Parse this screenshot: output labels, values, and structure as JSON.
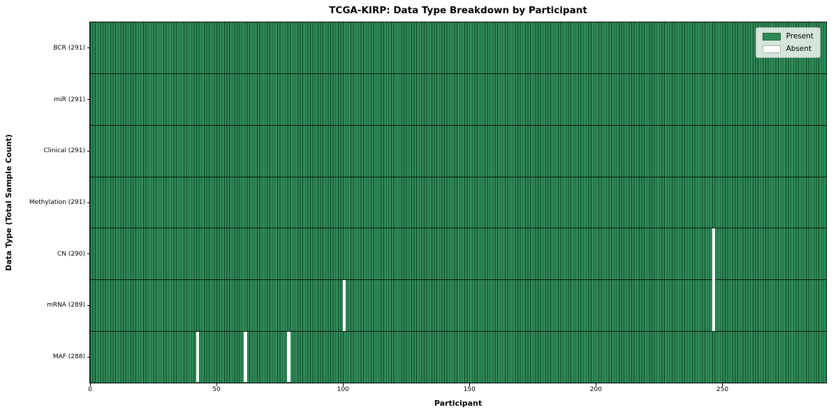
{
  "chart_data": {
    "type": "heatmap",
    "title": "TCGA-KIRP: Data Type Breakdown by Participant",
    "xlabel": "Participant",
    "ylabel": "Data Type (Total Sample Count)",
    "x_ticks": [
      0,
      50,
      100,
      150,
      200,
      250
    ],
    "xlim": [
      0,
      291
    ],
    "n_participants": 291,
    "grid": false,
    "legend": {
      "position": "upper right",
      "entries": [
        {
          "label": "Present",
          "color": "#2e8b57"
        },
        {
          "label": "Absent",
          "color": "#ffffff"
        }
      ]
    },
    "rows": [
      {
        "label": "BCR (291)",
        "data_type": "BCR",
        "count": 291,
        "absent_participants": []
      },
      {
        "label": "miR (291)",
        "data_type": "miR",
        "count": 291,
        "absent_participants": []
      },
      {
        "label": "Clinical (291)",
        "data_type": "Clinical",
        "count": 291,
        "absent_participants": []
      },
      {
        "label": "Methylation (291)",
        "data_type": "Methylation",
        "count": 291,
        "absent_participants": []
      },
      {
        "label": "CN (290)",
        "data_type": "CN",
        "count": 290,
        "absent_participants": [
          246
        ]
      },
      {
        "label": "mRNA (289)",
        "data_type": "mRNA",
        "count": 289,
        "absent_participants": [
          100,
          246
        ]
      },
      {
        "label": "MAF (288)",
        "data_type": "MAF",
        "count": 288,
        "absent_participants": [
          42,
          61,
          78
        ]
      }
    ],
    "colors": {
      "present": "#2e8b57",
      "absent": "#ffffff",
      "bar_edge": "#16402a",
      "axes_border": "#000000"
    }
  }
}
